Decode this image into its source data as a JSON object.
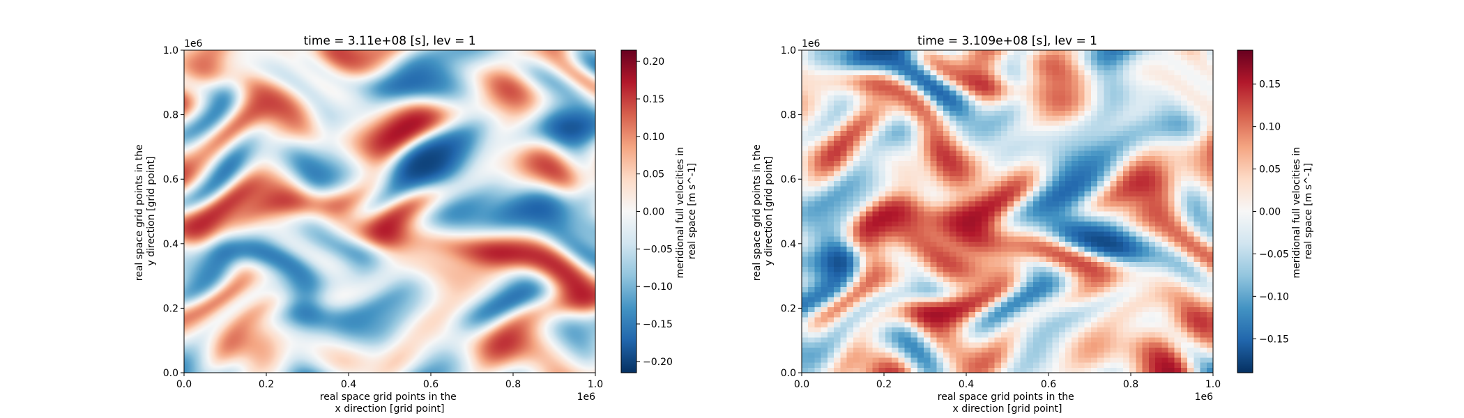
{
  "chart_data": [
    {
      "type": "heatmap",
      "title": "time = 3.11e+08 [s], lev = 1",
      "xlabel": [
        "real space grid points in the",
        "x direction [grid point]"
      ],
      "ylabel": [
        "real space grid points in the",
        "y direction [grid point]"
      ],
      "x_offset_label": "1e6",
      "y_offset_label": "1e6",
      "xlim": [
        0,
        1.0
      ],
      "ylim": [
        0,
        1.0
      ],
      "xticks": [
        "0.0",
        "0.2",
        "0.4",
        "0.6",
        "0.8",
        "1.0"
      ],
      "yticks": [
        "0.0",
        "0.2",
        "0.4",
        "0.6",
        "0.8",
        "1.0"
      ],
      "colorbar": {
        "label": [
          "meridional full velocities in",
          "real space [m s^-1]"
        ],
        "range": [
          -0.215,
          0.215
        ],
        "ticks": [
          "−0.20",
          "−0.15",
          "−0.10",
          "−0.05",
          "0.00",
          "0.05",
          "0.10",
          "0.15",
          "0.20"
        ],
        "tick_values": [
          -0.2,
          -0.15,
          -0.1,
          -0.05,
          0,
          0.05,
          0.1,
          0.15,
          0.2
        ],
        "colormap": "RdBu_r"
      },
      "field_resolution": "high (smooth)",
      "grid": false
    },
    {
      "type": "heatmap",
      "title": "time = 3.109e+08 [s], lev = 1",
      "xlabel": [
        "real space grid points in the",
        "x direction [grid point]"
      ],
      "ylabel": [
        "real space grid points in the",
        "y direction [grid point]"
      ],
      "x_offset_label": "1e6",
      "y_offset_label": "1e6",
      "xlim": [
        0,
        1.0
      ],
      "ylim": [
        0,
        1.0
      ],
      "xticks": [
        "0.0",
        "0.2",
        "0.4",
        "0.6",
        "0.8",
        "1.0"
      ],
      "yticks": [
        "0.0",
        "0.2",
        "0.4",
        "0.6",
        "0.8",
        "1.0"
      ],
      "colorbar": {
        "label": [
          "meridional full velocities in",
          "real space [m s^-1]"
        ],
        "range": [
          -0.19,
          0.19
        ],
        "ticks": [
          "−0.15",
          "−0.10",
          "−0.05",
          "0.00",
          "0.05",
          "0.10",
          "0.15"
        ],
        "tick_values": [
          -0.15,
          -0.1,
          -0.05,
          0,
          0.05,
          0.1,
          0.15
        ],
        "colormap": "RdBu_r"
      },
      "field_resolution": "coarse (pixelated)",
      "grid": false
    }
  ]
}
